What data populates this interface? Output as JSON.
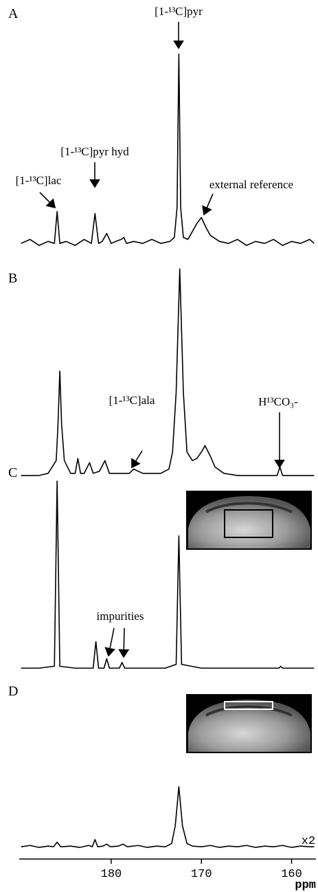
{
  "chart_data": [
    {
      "type": "line",
      "label": "A",
      "color": "#000000",
      "xlim": [
        190.2,
        157.3
      ],
      "ylim": [
        0,
        100
      ],
      "annotations": [
        "[1-¹³C]pyr",
        "[1-¹³C]pyr hyd",
        "[1-¹³C]lac",
        "external reference"
      ],
      "x": [
        190.0,
        189.0,
        188.0,
        187.0,
        186.3,
        186.0,
        185.7,
        185.0,
        184.0,
        183.0,
        182.2,
        181.8,
        181.4,
        181.0,
        180.5,
        180.0,
        179.5,
        178.9,
        178.6,
        178.3,
        177.5,
        176.5,
        175.5,
        174.5,
        173.5,
        173.0,
        172.7,
        172.5,
        172.3,
        172.0,
        171.5,
        171.0,
        170.5,
        170.0,
        169.5,
        169.0,
        168.0,
        167.0,
        166.0,
        165.0,
        164.0,
        163.0,
        162.0,
        161.0,
        160.0,
        159.0,
        158.0,
        157.5
      ],
      "values": [
        2,
        4,
        1,
        3,
        2,
        18,
        2,
        3,
        1,
        4,
        2,
        17,
        2,
        3,
        7,
        2,
        3,
        4,
        5,
        2,
        3,
        2,
        4,
        2,
        3,
        5,
        20,
        97,
        20,
        5,
        4,
        8,
        12,
        15,
        10,
        6,
        3,
        2,
        4,
        1,
        3,
        2,
        4,
        1,
        3,
        2,
        4,
        2
      ]
    },
    {
      "type": "line",
      "label": "B",
      "color": "#000000",
      "xlim": [
        190.2,
        157.3
      ],
      "ylim": [
        0,
        100
      ],
      "annotations": [
        "[1-¹³C]ala",
        "H¹³CO₃-"
      ],
      "x": [
        190,
        188,
        187,
        186.1,
        185.9,
        185.7,
        185.5,
        185.2,
        184.5,
        184.0,
        183.7,
        183.4,
        183.0,
        182.4,
        182.0,
        181.3,
        180.7,
        180.2,
        179.5,
        178.0,
        177.5,
        176.5,
        175.5,
        174.5,
        173.6,
        173.2,
        172.8,
        172.4,
        172.0,
        171.6,
        171.0,
        170.5,
        170.0,
        169.6,
        169.0,
        168.5,
        167.5,
        166.0,
        163.0,
        161.6,
        161.3,
        161.0,
        159.0,
        157.5
      ],
      "values": [
        1,
        1,
        2,
        8,
        25,
        50,
        25,
        8,
        2,
        2,
        9,
        2,
        2,
        7,
        2,
        3,
        8,
        2,
        2,
        2,
        4,
        2,
        2,
        2,
        4,
        12,
        40,
        98,
        40,
        12,
        8,
        9,
        12,
        15,
        10,
        5,
        2,
        1,
        1,
        1,
        5,
        1,
        1,
        1
      ]
    },
    {
      "type": "line",
      "label": "C",
      "color": "#000000",
      "xlim": [
        190.2,
        157.3
      ],
      "ylim": [
        0,
        100
      ],
      "annotations": [
        "impurities"
      ],
      "x": [
        190,
        188,
        186.3,
        186.0,
        185.7,
        184,
        182.0,
        181.7,
        181.4,
        180.8,
        180.5,
        180.2,
        179.1,
        178.8,
        178.5,
        176,
        174,
        172.8,
        172.5,
        172.2,
        170,
        165,
        161.4,
        161.2,
        161.0,
        158,
        157.5
      ],
      "values": [
        1,
        1,
        2,
        100,
        2,
        1,
        1,
        15,
        1,
        1,
        6,
        1,
        1,
        4,
        1,
        1,
        1,
        3,
        71,
        3,
        1,
        1,
        1,
        2,
        1,
        1,
        1
      ]
    },
    {
      "type": "line",
      "label": "D",
      "color": "#000000",
      "xlim": [
        190.2,
        157.3
      ],
      "ylim": [
        0,
        100
      ],
      "xticks": [
        180,
        170,
        160
      ],
      "x_label": "ppm",
      "annotations": [
        "x2"
      ],
      "x": [
        190,
        189,
        188,
        187,
        186.4,
        186.0,
        185.6,
        184.5,
        183.5,
        182.5,
        182.1,
        181.8,
        181.5,
        180.9,
        180.5,
        180.1,
        179.2,
        178.7,
        178.2,
        177,
        176,
        175,
        174,
        173.3,
        172.9,
        172.5,
        172.1,
        171.6,
        171,
        170,
        169,
        168,
        167,
        166,
        165,
        164,
        163,
        162,
        161,
        160,
        159,
        158,
        157.5
      ],
      "values": [
        3,
        5,
        2,
        4,
        3,
        10,
        3,
        4,
        2,
        5,
        3,
        14,
        3,
        4,
        7,
        3,
        4,
        7,
        3,
        5,
        2,
        4,
        3,
        8,
        35,
        95,
        35,
        8,
        4,
        3,
        5,
        2,
        4,
        3,
        5,
        2,
        4,
        3,
        5,
        2,
        4,
        3,
        3
      ]
    }
  ]
}
